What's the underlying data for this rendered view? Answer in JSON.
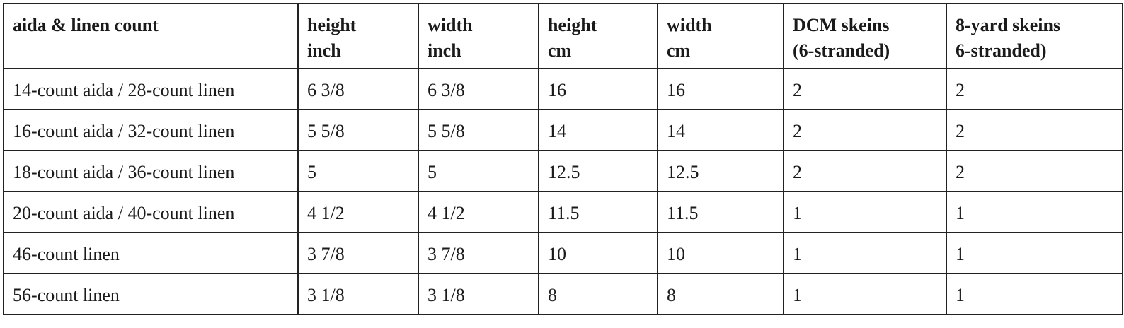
{
  "table": {
    "headers": [
      [
        "aida & linen count",
        ""
      ],
      [
        "height",
        "inch"
      ],
      [
        "width",
        "inch"
      ],
      [
        "height",
        "cm"
      ],
      [
        "width",
        "cm"
      ],
      [
        "DCM skeins",
        "(6-stranded)"
      ],
      [
        "8-yard skeins",
        "6-stranded)"
      ]
    ],
    "rows": [
      [
        "14-count aida / 28-count linen",
        "6 3/8",
        "6 3/8",
        "16",
        "16",
        "2",
        "2"
      ],
      [
        "16-count aida / 32-count linen",
        "5 5/8",
        "5 5/8",
        "14",
        "14",
        "2",
        "2"
      ],
      [
        "18-count aida / 36-count linen",
        "5",
        "5",
        "12.5",
        "12.5",
        "2",
        "2"
      ],
      [
        "20-count aida / 40-count linen",
        "4 1/2",
        "4 1/2",
        "11.5",
        "11.5",
        "1",
        "1"
      ],
      [
        "46-count linen",
        "3 7/8",
        "3 7/8",
        "10",
        "10",
        "1",
        "1"
      ],
      [
        "56-count linen",
        "3 1/8",
        "3 1/8",
        "8",
        "8",
        "1",
        "1"
      ]
    ]
  }
}
